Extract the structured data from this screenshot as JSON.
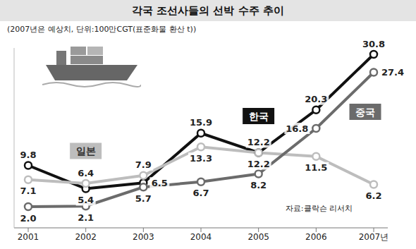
{
  "chart_data": {
    "type": "line",
    "title": "각국 조선사들의 선박 수주 추이",
    "subtitle": "(2007년은 예상치, 단위:100만CGT(표준화물 환산 t))",
    "source": "자료:클락슨 리서치",
    "categories": [
      "2001",
      "2002",
      "2003",
      "2004",
      "2005",
      "2006",
      "2007년"
    ],
    "series": [
      {
        "name": "한국",
        "color": "#111111",
        "values": [
          9.8,
          5.4,
          6.5,
          15.9,
          12.2,
          20.3,
          30.8
        ]
      },
      {
        "name": "일본",
        "color": "#bdbdbd",
        "values": [
          7.1,
          6.4,
          7.9,
          13.3,
          12.2,
          11.5,
          6.2
        ]
      },
      {
        "name": "중국",
        "color": "#6b6b6b",
        "values": [
          2.0,
          2.1,
          5.7,
          6.7,
          8.2,
          16.8,
          27.4
        ],
        "value_labels": [
          "2.0",
          "2.1",
          "5.7",
          "6.7",
          "8.2",
          "16.8",
          "27.4"
        ]
      }
    ],
    "ylim": [
      -2,
      32
    ],
    "tick_labels": "x",
    "grid": false,
    "data_labels": true,
    "marker": "circle"
  }
}
